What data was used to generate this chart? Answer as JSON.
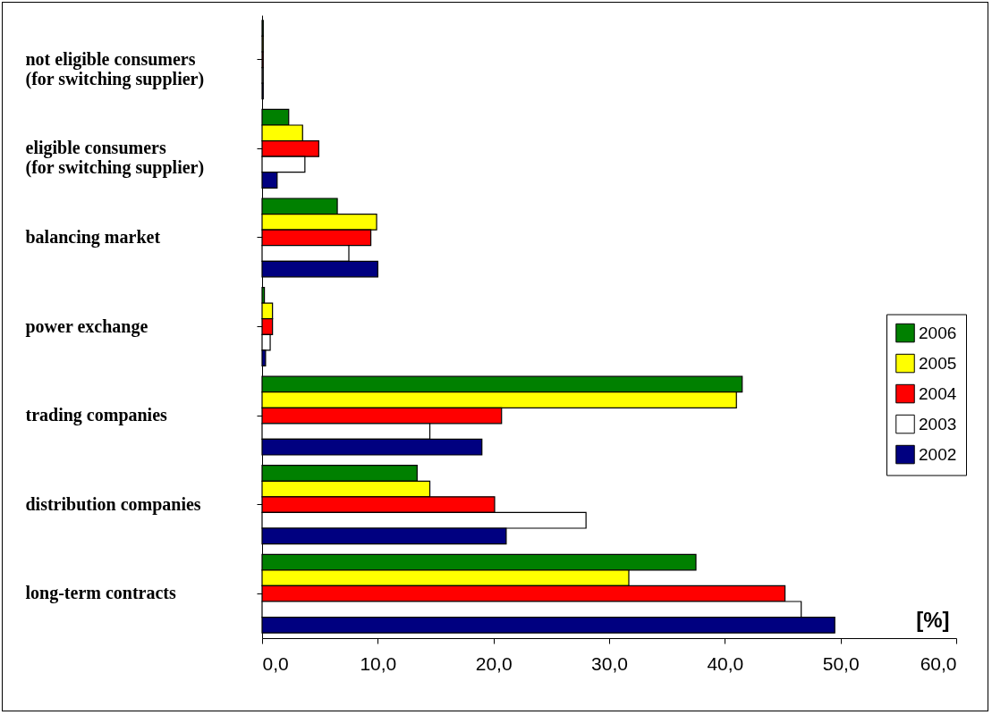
{
  "chart_data": {
    "type": "bar",
    "orientation": "horizontal",
    "xlabel": "[%]",
    "categories": [
      "not eligible consumers\n(for switching supplier)",
      "eligible consumers\n(for switching supplier)",
      "balancing market",
      "power exchange",
      "trading companies",
      "distribution companies",
      "long-term contracts"
    ],
    "series": [
      {
        "name": "2006",
        "color": "#008000",
        "values": [
          0.1,
          2.3,
          6.5,
          0.2,
          41.5,
          13.4,
          37.5
        ]
      },
      {
        "name": "2005",
        "color": "#ffff00",
        "values": [
          0.1,
          3.5,
          9.9,
          0.9,
          41.0,
          14.5,
          31.7
        ]
      },
      {
        "name": "2004",
        "color": "#ff0000",
        "values": [
          0.1,
          4.9,
          9.4,
          0.9,
          20.7,
          20.1,
          45.2
        ]
      },
      {
        "name": "2003",
        "color": "#ffffff",
        "values": [
          0.1,
          3.7,
          7.5,
          0.7,
          14.5,
          28.0,
          46.6
        ]
      },
      {
        "name": "2002",
        "color": "#000080",
        "values": [
          0.1,
          1.3,
          10.0,
          0.3,
          19.0,
          21.1,
          49.5
        ]
      }
    ],
    "xlim": [
      0,
      60
    ],
    "xticks": [
      {
        "value": 0,
        "label": "0,0"
      },
      {
        "value": 10,
        "label": "10,0"
      },
      {
        "value": 20,
        "label": "20,0"
      },
      {
        "value": 30,
        "label": "30,0"
      },
      {
        "value": 40,
        "label": "40,0"
      },
      {
        "value": 50,
        "label": "50,0"
      },
      {
        "value": 60,
        "label": "60,0"
      }
    ],
    "grid": false,
    "legend": "right"
  }
}
